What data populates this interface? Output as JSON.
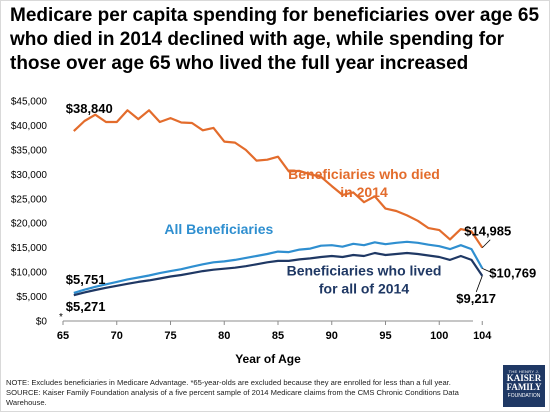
{
  "title_lines": [
    "Medicare per capita spending for beneficiaries over age 65",
    "who died in 2014 declined with age, while spending for",
    "those over age 65 who lived the full year increased"
  ],
  "chart_data": {
    "type": "line",
    "title": "Medicare per capita spending for beneficiaries over age 65 who died in 2014 declined with age, while spending for those over age 65 who lived the full year increased",
    "xlabel": "Year of Age",
    "ylabel": "",
    "xlim": [
      65,
      105
    ],
    "ylim": [
      0,
      45000
    ],
    "x_ticks": [
      65,
      70,
      75,
      80,
      85,
      90,
      95,
      100,
      104
    ],
    "y_ticks": [
      0,
      5000,
      10000,
      15000,
      20000,
      25000,
      30000,
      35000,
      40000,
      45000
    ],
    "y_tick_labels": [
      "$0",
      "$5,000",
      "$10,000",
      "$15,000",
      "$20,000",
      "$25,000",
      "$30,000",
      "$35,000",
      "$40,000",
      "$45,000"
    ],
    "x_marker": "*",
    "grid": false,
    "legend": "inline labels",
    "series": [
      {
        "name": "Beneficiaries who died in 2014",
        "color": "#e36c2c",
        "x": [
          66,
          67,
          68,
          69,
          70,
          71,
          72,
          73,
          74,
          75,
          76,
          77,
          78,
          79,
          80,
          81,
          82,
          83,
          84,
          85,
          86,
          87,
          88,
          89,
          90,
          91,
          92,
          93,
          94,
          95,
          96,
          97,
          98,
          99,
          100,
          101,
          102,
          103,
          104
        ],
        "values": [
          38840,
          40900,
          42200,
          40700,
          40700,
          43100,
          41300,
          43100,
          40700,
          41500,
          40600,
          40500,
          39000,
          39500,
          36700,
          36500,
          35000,
          32800,
          33000,
          33600,
          30600,
          30700,
          30000,
          29500,
          27600,
          25800,
          26300,
          24300,
          25500,
          23000,
          22500,
          21600,
          20500,
          19000,
          18600,
          16700,
          18800,
          18300,
          14985
        ]
      },
      {
        "name": "All Beneficiaries",
        "color": "#2f8fd0",
        "x": [
          66,
          67,
          68,
          69,
          70,
          71,
          72,
          73,
          74,
          75,
          76,
          77,
          78,
          79,
          80,
          81,
          82,
          83,
          84,
          85,
          86,
          87,
          88,
          89,
          90,
          91,
          92,
          93,
          94,
          95,
          96,
          97,
          98,
          99,
          100,
          101,
          102,
          103,
          104
        ],
        "values": [
          5751,
          6400,
          7000,
          7500,
          8000,
          8500,
          8900,
          9300,
          9800,
          10200,
          10600,
          11100,
          11600,
          12000,
          12200,
          12500,
          12900,
          13300,
          13700,
          14200,
          14100,
          14600,
          14800,
          15400,
          15500,
          15200,
          15800,
          15500,
          16100,
          15700,
          16000,
          16200,
          16000,
          15600,
          15300,
          14700,
          15500,
          14700,
          10769
        ]
      },
      {
        "name": "Beneficiaries who lived for all of 2014",
        "color": "#1f3864",
        "x": [
          66,
          67,
          68,
          69,
          70,
          71,
          72,
          73,
          74,
          75,
          76,
          77,
          78,
          79,
          80,
          81,
          82,
          83,
          84,
          85,
          86,
          87,
          88,
          89,
          90,
          91,
          92,
          93,
          94,
          95,
          96,
          97,
          98,
          99,
          100,
          101,
          102,
          103,
          104
        ],
        "values": [
          5271,
          5850,
          6350,
          6800,
          7200,
          7600,
          8000,
          8300,
          8700,
          9100,
          9400,
          9800,
          10200,
          10500,
          10700,
          10900,
          11200,
          11600,
          12000,
          12300,
          12300,
          12600,
          12800,
          13100,
          13300,
          13100,
          13500,
          13300,
          13900,
          13500,
          13700,
          13900,
          13700,
          13400,
          13100,
          12500,
          13300,
          12500,
          9217
        ]
      }
    ],
    "annotations": [
      {
        "text": "$38,840",
        "at": {
          "x": 66,
          "y": 38840
        }
      },
      {
        "text": "$5,751",
        "at": {
          "x": 66,
          "y": 5751
        }
      },
      {
        "text": "$5,271",
        "at": {
          "x": 66,
          "y": 5271
        }
      },
      {
        "text": "$14,985",
        "at": {
          "x": 104,
          "y": 14985
        }
      },
      {
        "text": "$10,769",
        "at": {
          "x": 104,
          "y": 10769
        }
      },
      {
        "text": "$9,217",
        "at": {
          "x": 104,
          "y": 9217
        }
      }
    ],
    "inline_labels": {
      "died_line1": "Beneficiaries who died",
      "died_line2": "in 2014",
      "all": "All Beneficiaries",
      "lived_line1": "Beneficiaries who lived",
      "lived_line2": "for all of 2014"
    }
  },
  "notes": {
    "line1": "NOTE: Excludes beneficiaries in Medicare Advantage. *65-year-olds are excluded because they are enrolled for less than a full year.",
    "line2": "SOURCE: Kaiser Family Foundation analysis of a five percent sample of 2014 Medicare claims from the CMS Chronic Conditions Data",
    "line3": "Warehouse."
  },
  "logo": {
    "line1": "THE HENRY J.",
    "line2": "KAISER",
    "line3": "FAMILY",
    "line4": "FOUNDATION"
  }
}
